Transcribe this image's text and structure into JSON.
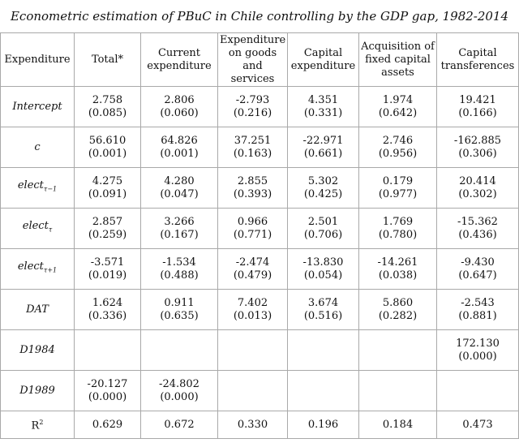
{
  "title": "Econometric estimation of PBuC in Chile controlling by the GDP gap, 1982-2014",
  "headers": [
    "Expenditure",
    "Total*",
    "Current expenditure",
    "Expenditure on goods and services",
    "Capital expenditure",
    "Acquisition of fixed capital assets",
    "Capital transferences"
  ],
  "rows": [
    {
      "label": "Intercept",
      "cells": [
        [
          "2.758",
          "(0.085)"
        ],
        [
          "2.806",
          "(0.060)"
        ],
        [
          "-2.793",
          "(0.216)"
        ],
        [
          "4.351",
          "(0.331)"
        ],
        [
          "1.974",
          "(0.642)"
        ],
        [
          "19.421",
          "(0.166)"
        ]
      ]
    },
    {
      "label": "c",
      "cells": [
        [
          "56.610",
          "(0.001)"
        ],
        [
          "64.826",
          "(0.001)"
        ],
        [
          "37.251",
          "(0.163)"
        ],
        [
          "-22.971",
          "(0.661)"
        ],
        [
          "2.746",
          "(0.956)"
        ],
        [
          "-162.885",
          "(0.306)"
        ]
      ]
    },
    {
      "label": "elect",
      "sub": "τ−1",
      "cells": [
        [
          "4.275",
          "(0.091)"
        ],
        [
          "4.280",
          "(0.047)"
        ],
        [
          "2.855",
          "(0.393)"
        ],
        [
          "5.302",
          "(0.425)"
        ],
        [
          "0.179",
          "(0.977)"
        ],
        [
          "20.414",
          "(0.302)"
        ]
      ]
    },
    {
      "label": "elect",
      "sub": "τ",
      "cells": [
        [
          "2.857",
          "(0.259)"
        ],
        [
          "3.266",
          "(0.167)"
        ],
        [
          "0.966",
          "(0.771)"
        ],
        [
          "2.501",
          "(0.706)"
        ],
        [
          "1.769",
          "(0.780)"
        ],
        [
          "-15.362",
          "(0.436)"
        ]
      ]
    },
    {
      "label": "elect",
      "sub": "τ+1",
      "cells": [
        [
          "-3.571",
          "(0.019)"
        ],
        [
          "-1.534",
          "(0.488)"
        ],
        [
          "-2.474",
          "(0.479)"
        ],
        [
          "-13.830",
          "(0.054)"
        ],
        [
          "-14.261",
          "(0.038)"
        ],
        [
          "-9.430",
          "(0.647)"
        ]
      ]
    },
    {
      "label": "DAT",
      "cells": [
        [
          "1.624",
          "(0.336)"
        ],
        [
          "0.911",
          "(0.635)"
        ],
        [
          "7.402",
          "(0.013)"
        ],
        [
          "3.674",
          "(0.516)"
        ],
        [
          "5.860",
          "(0.282)"
        ],
        [
          "-2.543",
          "(0.881)"
        ]
      ]
    },
    {
      "label": "D1984",
      "cells": [
        [
          "",
          ""
        ],
        [
          "",
          ""
        ],
        [
          "",
          ""
        ],
        [
          "",
          ""
        ],
        [
          "",
          ""
        ],
        [
          "172.130",
          "(0.000)"
        ]
      ]
    },
    {
      "label": "D1989",
      "cells": [
        [
          "-20.127",
          "(0.000)"
        ],
        [
          "-24.802",
          "(0.000)"
        ],
        [
          "",
          ""
        ],
        [
          "",
          ""
        ],
        [
          "",
          ""
        ],
        [
          "",
          ""
        ]
      ]
    }
  ],
  "r2_row": {
    "label": "R",
    "sup": "2",
    "values": [
      "0.629",
      "0.672",
      "0.330",
      "0.196",
      "0.184",
      "0.473"
    ]
  }
}
